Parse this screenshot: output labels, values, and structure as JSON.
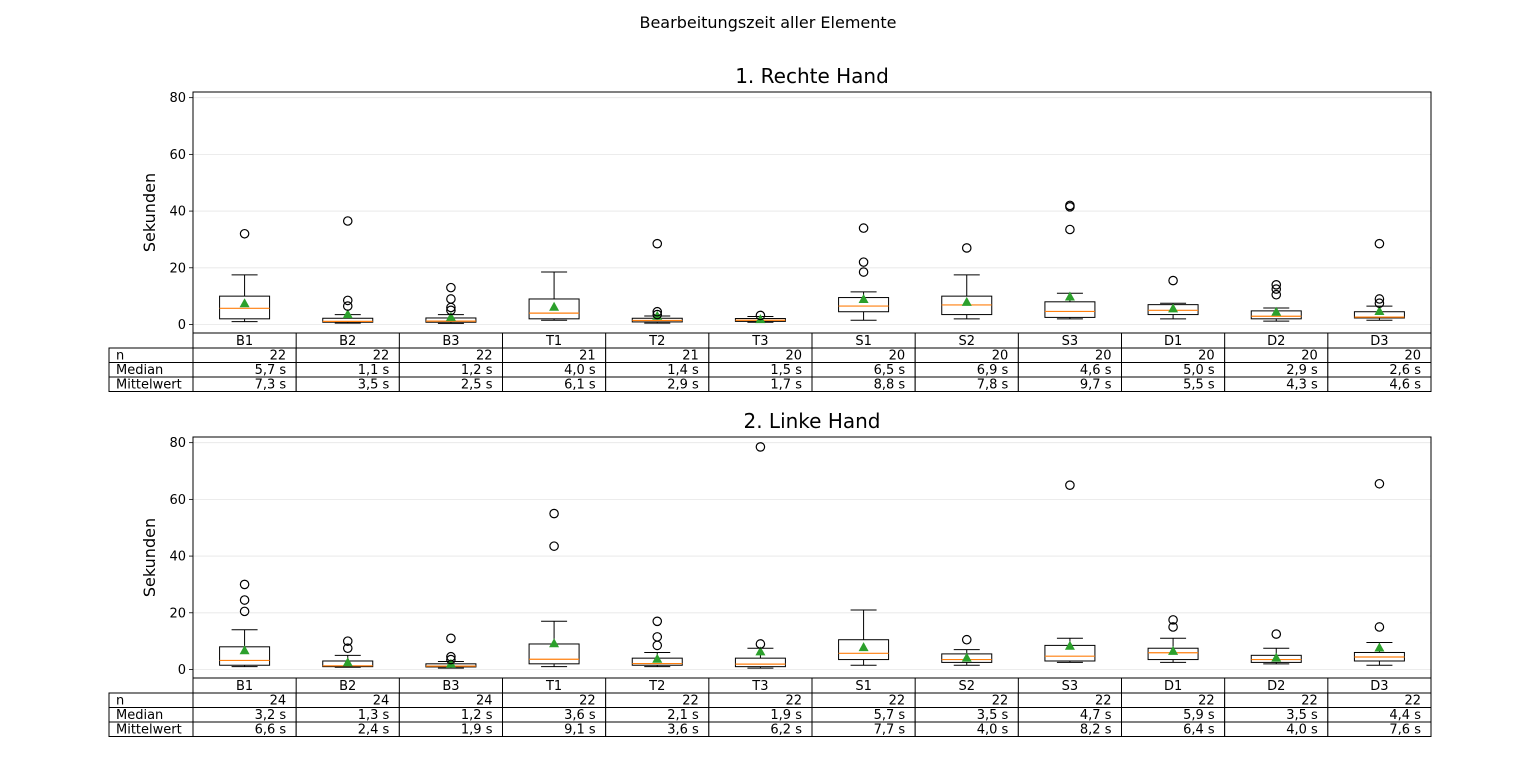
{
  "figure_title": "Bearbeitungszeit aller Elemente",
  "chart_data": [
    {
      "type": "boxplot",
      "title": "1. Rechte Hand",
      "ylabel": "Sekunden",
      "xlabel": "",
      "ylim": [
        -3,
        82
      ],
      "yticks": [
        0,
        20,
        40,
        60,
        80
      ],
      "grid": "horizontal",
      "categories": [
        "B1",
        "B2",
        "B3",
        "T1",
        "T2",
        "T3",
        "S1",
        "S2",
        "S3",
        "D1",
        "D2",
        "D3"
      ],
      "boxes": [
        {
          "whislo": 1.0,
          "q1": 2.0,
          "med": 5.7,
          "q3": 10.0,
          "whishi": 17.5,
          "mean": 7.3,
          "fliers": [
            32.0
          ]
        },
        {
          "whislo": 0.5,
          "q1": 0.8,
          "med": 1.1,
          "q3": 2.2,
          "whishi": 3.5,
          "mean": 3.5,
          "fliers": [
            6.5,
            8.5,
            36.5
          ]
        },
        {
          "whislo": 0.4,
          "q1": 0.8,
          "med": 1.2,
          "q3": 2.3,
          "whishi": 3.5,
          "mean": 2.5,
          "fliers": [
            5.0,
            6.0,
            9.0,
            13.0
          ]
        },
        {
          "whislo": 1.5,
          "q1": 2.0,
          "med": 4.0,
          "q3": 9.0,
          "whishi": 18.5,
          "mean": 6.1,
          "fliers": []
        },
        {
          "whislo": 0.5,
          "q1": 0.9,
          "med": 1.4,
          "q3": 2.2,
          "whishi": 3.0,
          "mean": 2.9,
          "fliers": [
            3.5,
            4.5,
            28.5
          ]
        },
        {
          "whislo": 0.8,
          "q1": 1.1,
          "med": 1.5,
          "q3": 2.1,
          "whishi": 2.8,
          "mean": 1.7,
          "fliers": [
            3.2
          ]
        },
        {
          "whislo": 1.5,
          "q1": 4.5,
          "med": 6.5,
          "q3": 9.5,
          "whishi": 11.5,
          "mean": 8.8,
          "fliers": [
            18.5,
            22.0,
            34.0
          ]
        },
        {
          "whislo": 2.0,
          "q1": 3.5,
          "med": 6.9,
          "q3": 10.0,
          "whishi": 17.5,
          "mean": 7.8,
          "fliers": [
            27.0
          ]
        },
        {
          "whislo": 2.0,
          "q1": 2.5,
          "med": 4.6,
          "q3": 8.0,
          "whishi": 11.0,
          "mean": 9.7,
          "fliers": [
            33.5,
            41.5,
            42.0
          ]
        },
        {
          "whislo": 2.0,
          "q1": 3.5,
          "med": 5.0,
          "q3": 7.0,
          "whishi": 7.5,
          "mean": 5.5,
          "fliers": [
            15.5
          ]
        },
        {
          "whislo": 1.2,
          "q1": 2.0,
          "med": 2.9,
          "q3": 4.8,
          "whishi": 5.8,
          "mean": 4.3,
          "fliers": [
            10.5,
            12.5,
            14.0
          ]
        },
        {
          "whislo": 1.5,
          "q1": 2.3,
          "med": 2.6,
          "q3": 4.5,
          "whishi": 6.5,
          "mean": 4.6,
          "fliers": [
            7.5,
            9.0,
            28.5
          ]
        }
      ],
      "table": {
        "row_labels": [
          "n",
          "Median",
          "Mittelwert"
        ],
        "rows": [
          [
            "22",
            "22",
            "22",
            "21",
            "21",
            "20",
            "20",
            "20",
            "20",
            "20",
            "20",
            "20"
          ],
          [
            "5,7 s",
            "1,1 s",
            "1,2 s",
            "4,0 s",
            "1,4 s",
            "1,5 s",
            "6,5 s",
            "6,9 s",
            "4,6 s",
            "5,0 s",
            "2,9 s",
            "2,6 s"
          ],
          [
            "7,3 s",
            "3,5 s",
            "2,5 s",
            "6,1 s",
            "2,9 s",
            "1,7 s",
            "8,8 s",
            "7,8 s",
            "9,7 s",
            "5,5 s",
            "4,3 s",
            "4,6 s"
          ]
        ]
      }
    },
    {
      "type": "boxplot",
      "title": "2. Linke Hand",
      "ylabel": "Sekunden",
      "xlabel": "",
      "ylim": [
        -3,
        82
      ],
      "yticks": [
        0,
        20,
        40,
        60,
        80
      ],
      "grid": "horizontal",
      "categories": [
        "B1",
        "B2",
        "B3",
        "T1",
        "T2",
        "T3",
        "S1",
        "S2",
        "S3",
        "D1",
        "D2",
        "D3"
      ],
      "boxes": [
        {
          "whislo": 1.0,
          "q1": 1.5,
          "med": 3.2,
          "q3": 8.0,
          "whishi": 14.0,
          "mean": 6.6,
          "fliers": [
            20.5,
            24.5,
            30.0
          ]
        },
        {
          "whislo": 0.8,
          "q1": 1.0,
          "med": 1.3,
          "q3": 3.0,
          "whishi": 5.0,
          "mean": 2.4,
          "fliers": [
            7.5,
            10.0
          ]
        },
        {
          "whislo": 0.5,
          "q1": 0.9,
          "med": 1.2,
          "q3": 2.0,
          "whishi": 2.8,
          "mean": 1.9,
          "fliers": [
            3.5,
            4.5,
            11.0
          ]
        },
        {
          "whislo": 1.0,
          "q1": 2.0,
          "med": 3.6,
          "q3": 9.0,
          "whishi": 17.0,
          "mean": 9.1,
          "fliers": [
            43.5,
            55.0
          ]
        },
        {
          "whislo": 1.0,
          "q1": 1.5,
          "med": 2.1,
          "q3": 4.0,
          "whishi": 6.0,
          "mean": 3.6,
          "fliers": [
            8.5,
            11.5,
            17.0
          ]
        },
        {
          "whislo": 0.5,
          "q1": 1.0,
          "med": 1.9,
          "q3": 4.0,
          "whishi": 7.5,
          "mean": 6.2,
          "fliers": [
            9.0,
            78.5
          ]
        },
        {
          "whislo": 1.5,
          "q1": 3.5,
          "med": 5.7,
          "q3": 10.5,
          "whishi": 21.0,
          "mean": 7.7,
          "fliers": []
        },
        {
          "whislo": 1.5,
          "q1": 2.5,
          "med": 3.5,
          "q3": 5.5,
          "whishi": 7.0,
          "mean": 4.0,
          "fliers": [
            10.5
          ]
        },
        {
          "whislo": 2.5,
          "q1": 3.0,
          "med": 4.7,
          "q3": 8.5,
          "whishi": 11.0,
          "mean": 8.2,
          "fliers": [
            65.0
          ]
        },
        {
          "whislo": 2.5,
          "q1": 3.5,
          "med": 5.9,
          "q3": 7.5,
          "whishi": 11.0,
          "mean": 6.4,
          "fliers": [
            15.0,
            17.5
          ]
        },
        {
          "whislo": 2.0,
          "q1": 2.5,
          "med": 3.5,
          "q3": 5.0,
          "whishi": 7.5,
          "mean": 4.0,
          "fliers": [
            12.5
          ]
        },
        {
          "whislo": 1.5,
          "q1": 3.0,
          "med": 4.4,
          "q3": 6.0,
          "whishi": 9.5,
          "mean": 7.6,
          "fliers": [
            15.0,
            65.5
          ]
        }
      ],
      "table": {
        "row_labels": [
          "n",
          "Median",
          "Mittelwert"
        ],
        "rows": [
          [
            "24",
            "24",
            "24",
            "22",
            "22",
            "22",
            "22",
            "22",
            "22",
            "22",
            "22",
            "22"
          ],
          [
            "3,2 s",
            "1,3 s",
            "1,2 s",
            "3,6 s",
            "2,1 s",
            "1,9 s",
            "5,7 s",
            "3,5 s",
            "4,7 s",
            "5,9 s",
            "3,5 s",
            "4,4 s"
          ],
          [
            "6,6 s",
            "2,4 s",
            "1,9 s",
            "9,1 s",
            "3,6 s",
            "6,2 s",
            "7,7 s",
            "4,0 s",
            "8,2 s",
            "6,4 s",
            "4,0 s",
            "7,6 s"
          ]
        ]
      }
    }
  ],
  "colors": {
    "median": "#ff7f0e",
    "mean": "#2ca02c",
    "grid": "#e6e6e6",
    "line": "#000000"
  }
}
